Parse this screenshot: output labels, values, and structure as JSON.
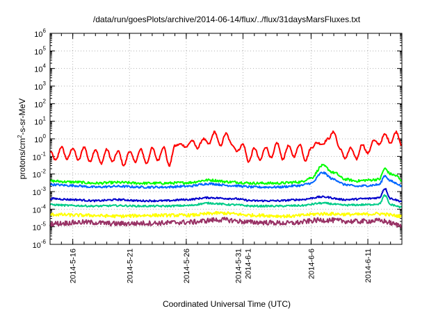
{
  "chart_data": {
    "type": "line",
    "title": "/data/run/goesPlots/archive/2014-06-14/flux/../flux/31daysMarsFluxes.txt",
    "xlabel": "Coordinated Universal Time (UTC)",
    "ylabel": "protons/cm2-s-sr-MeV",
    "ylabel_parts": {
      "pre": "protons/cm",
      "sup": "2",
      "post": "-s-sr-MeV"
    },
    "x_range": [
      "2014-05-14T00:00",
      "2014-06-14T00:00"
    ],
    "y_scale": "log",
    "ylim": [
      1e-06,
      1000000.0
    ],
    "grid": true,
    "legend": "none",
    "x_ticks": [
      {
        "date": "2014-05-16",
        "lines": [
          "2014-5-16"
        ]
      },
      {
        "date": "2014-05-21",
        "lines": [
          "2014-5-21"
        ]
      },
      {
        "date": "2014-05-26",
        "lines": [
          "2014-5-26"
        ]
      },
      {
        "date": "2014-05-31",
        "lines": [
          "2014-5-31",
          "2014-6-1"
        ]
      },
      {
        "date": "2014-06-06",
        "lines": [
          "2014-6-6"
        ]
      },
      {
        "date": "2014-06-11",
        "lines": [
          "2014-6-11"
        ]
      }
    ],
    "y_ticks": [
      {
        "base": "10",
        "exp": "-6"
      },
      {
        "base": "10",
        "exp": "-5"
      },
      {
        "base": "10",
        "exp": "-4"
      },
      {
        "base": "10",
        "exp": "-3"
      },
      {
        "base": "10",
        "exp": "-2"
      },
      {
        "base": "10",
        "exp": "-1"
      },
      {
        "base": "10",
        "exp": "0"
      },
      {
        "base": "10",
        "exp": "1"
      },
      {
        "base": "10",
        "exp": "2"
      },
      {
        "base": "10",
        "exp": "3"
      },
      {
        "base": "10",
        "exp": "4"
      },
      {
        "base": "10",
        "exp": "5"
      },
      {
        "base": "10",
        "exp": "6"
      }
    ],
    "series": [
      {
        "color": "#ff0000",
        "x": [
          "2014-05-14",
          "2014-05-14T12:00",
          "2014-05-15",
          "2014-05-15T12:00",
          "2014-05-16",
          "2014-05-16T12:00",
          "2014-05-17",
          "2014-05-17T12:00",
          "2014-05-18",
          "2014-05-18T12:00",
          "2014-05-19",
          "2014-05-19T12:00",
          "2014-05-20",
          "2014-05-20T12:00",
          "2014-05-21",
          "2014-05-21T12:00",
          "2014-05-22",
          "2014-05-22T12:00",
          "2014-05-23",
          "2014-05-23T12:00",
          "2014-05-24",
          "2014-05-24T12:00",
          "2014-05-25",
          "2014-05-25T12:00",
          "2014-05-26",
          "2014-05-26T12:00",
          "2014-05-27",
          "2014-05-27T12:00",
          "2014-05-28",
          "2014-05-28T12:00",
          "2014-05-29",
          "2014-05-29T12:00",
          "2014-05-30",
          "2014-05-30T12:00",
          "2014-05-31",
          "2014-05-31T12:00",
          "2014-06-01",
          "2014-06-01T12:00",
          "2014-06-02",
          "2014-06-02T12:00",
          "2014-06-03",
          "2014-06-03T12:00",
          "2014-06-04",
          "2014-06-04T12:00",
          "2014-06-05",
          "2014-06-05T12:00",
          "2014-06-06",
          "2014-06-06T12:00",
          "2014-06-07",
          "2014-06-07T12:00",
          "2014-06-08",
          "2014-06-08T12:00",
          "2014-06-09",
          "2014-06-09T12:00",
          "2014-06-10",
          "2014-06-10T12:00",
          "2014-06-11",
          "2014-06-11T12:00",
          "2014-06-12",
          "2014-06-12T12:00",
          "2014-06-13",
          "2014-06-13T12:00",
          "2014-06-14"
        ],
        "y": [
          0.2,
          0.06,
          0.35,
          0.07,
          0.3,
          0.06,
          0.35,
          0.05,
          0.25,
          0.04,
          0.25,
          0.05,
          0.2,
          0.03,
          0.2,
          0.05,
          0.25,
          0.04,
          0.3,
          0.06,
          0.35,
          0.03,
          0.4,
          0.5,
          0.35,
          0.8,
          0.3,
          1.0,
          0.5,
          2.5,
          0.4,
          2.0,
          0.5,
          0.2,
          0.5,
          0.05,
          0.3,
          0.06,
          0.35,
          0.08,
          0.6,
          0.07,
          0.4,
          0.1,
          0.5,
          0.06,
          0.3,
          0.6,
          0.5,
          1.0,
          2.5,
          0.3,
          0.08,
          0.3,
          0.07,
          0.5,
          0.15,
          0.8,
          0.5,
          1.8,
          0.6,
          2.5,
          0.45
        ]
      },
      {
        "color": "#00ff00",
        "x": [
          "2014-05-14",
          "2014-05-16",
          "2014-05-18",
          "2014-05-20",
          "2014-05-22",
          "2014-05-24",
          "2014-05-26",
          "2014-05-28",
          "2014-05-30",
          "2014-06-01",
          "2014-06-03",
          "2014-06-05",
          "2014-06-06",
          "2014-06-07",
          "2014-06-08",
          "2014-06-09",
          "2014-06-10",
          "2014-06-11",
          "2014-06-12",
          "2014-06-12T12:00",
          "2014-06-13",
          "2014-06-13T12:00",
          "2014-06-14"
        ],
        "y": [
          0.004,
          0.0035,
          0.003,
          0.0033,
          0.003,
          0.003,
          0.0032,
          0.0045,
          0.0035,
          0.003,
          0.003,
          0.0035,
          0.006,
          0.03,
          0.012,
          0.005,
          0.004,
          0.0045,
          0.005,
          0.02,
          0.01,
          0.008,
          0.004
        ]
      },
      {
        "color": "#0066ff",
        "x": [
          "2014-05-14",
          "2014-05-16",
          "2014-05-18",
          "2014-05-20",
          "2014-05-22",
          "2014-05-24",
          "2014-05-26",
          "2014-05-28",
          "2014-05-30",
          "2014-06-01",
          "2014-06-03",
          "2014-06-05",
          "2014-06-06",
          "2014-06-07",
          "2014-06-08",
          "2014-06-09",
          "2014-06-10",
          "2014-06-11",
          "2014-06-12",
          "2014-06-12T12:00",
          "2014-06-13",
          "2014-06-13T12:00",
          "2014-06-14"
        ],
        "y": [
          0.0025,
          0.0022,
          0.0018,
          0.002,
          0.0018,
          0.0018,
          0.002,
          0.0028,
          0.0022,
          0.0018,
          0.0018,
          0.0022,
          0.003,
          0.012,
          0.005,
          0.0025,
          0.002,
          0.0022,
          0.0025,
          0.008,
          0.004,
          0.003,
          0.002
        ]
      },
      {
        "color": "#0000cc",
        "x": [
          "2014-05-14",
          "2014-05-16",
          "2014-05-18",
          "2014-05-20",
          "2014-05-22",
          "2014-05-24",
          "2014-05-26",
          "2014-05-28",
          "2014-05-30",
          "2014-06-01",
          "2014-06-03",
          "2014-06-05",
          "2014-06-07",
          "2014-06-09",
          "2014-06-11",
          "2014-06-12",
          "2014-06-12T12:00",
          "2014-06-13",
          "2014-06-14"
        ],
        "y": [
          0.0004,
          0.00035,
          0.0003,
          0.00035,
          0.0003,
          0.0003,
          0.00035,
          0.00045,
          0.0004,
          0.0003,
          0.0003,
          0.00035,
          0.0005,
          0.00035,
          0.0004,
          0.00045,
          0.0015,
          0.0004,
          0.00028
        ]
      },
      {
        "color": "#00cc88",
        "x": [
          "2014-05-14",
          "2014-05-16",
          "2014-05-18",
          "2014-05-20",
          "2014-05-22",
          "2014-05-24",
          "2014-05-26",
          "2014-05-28",
          "2014-05-30",
          "2014-06-01",
          "2014-06-03",
          "2014-06-05",
          "2014-06-07",
          "2014-06-09",
          "2014-06-11",
          "2014-06-12",
          "2014-06-12T12:00",
          "2014-06-13",
          "2014-06-14"
        ],
        "y": [
          0.00018,
          0.00016,
          0.00015,
          0.00016,
          0.00015,
          0.00015,
          0.00016,
          0.00022,
          0.00018,
          0.00015,
          0.00015,
          0.00016,
          0.00022,
          0.00017,
          0.00018,
          0.0002,
          0.0006,
          0.00018,
          0.00013
        ]
      },
      {
        "color": "#ffff00",
        "x": [
          "2014-05-14",
          "2014-05-17",
          "2014-05-20",
          "2014-05-23",
          "2014-05-26",
          "2014-05-29",
          "2014-06-01",
          "2014-06-04",
          "2014-06-07",
          "2014-06-10",
          "2014-06-12",
          "2014-06-14"
        ],
        "y": [
          5e-05,
          4.5e-05,
          4e-05,
          4.5e-05,
          4.5e-05,
          6e-05,
          4.5e-05,
          4e-05,
          5.5e-05,
          5e-05,
          5.5e-05,
          4e-05
        ]
      },
      {
        "color": "#993366",
        "x": [
          "2014-05-14",
          "2014-05-17",
          "2014-05-20",
          "2014-05-23",
          "2014-05-26",
          "2014-05-29",
          "2014-06-01",
          "2014-06-04",
          "2014-06-07",
          "2014-06-10",
          "2014-06-12",
          "2014-06-14"
        ],
        "y": [
          1.5e-05,
          1.8e-05,
          1.5e-05,
          1.6e-05,
          1.8e-05,
          2.5e-05,
          1.8e-05,
          1.6e-05,
          2.4e-05,
          2e-05,
          2.2e-05,
          1.2e-05
        ]
      }
    ]
  }
}
